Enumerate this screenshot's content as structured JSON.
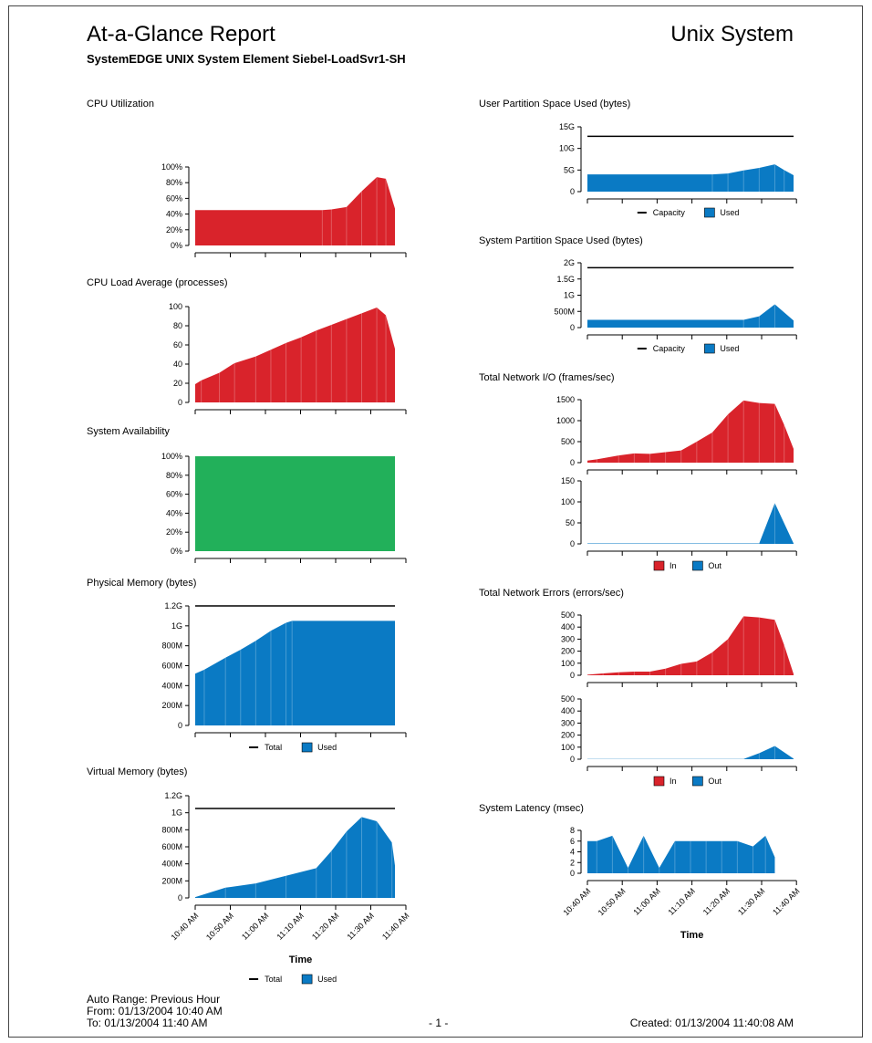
{
  "header": {
    "title": "At-a-Glance Report",
    "subtitle": "SystemEDGE UNIX System Element Siebel-LoadSvr1-SH",
    "system_type": "Unix System"
  },
  "footer": {
    "range": "Auto Range:  Previous Hour",
    "from": "From:  01/13/2004 10:40 AM",
    "to": "To:  01/13/2004 11:40 AM",
    "page": "- 1 -",
    "created": "Created:  01/13/2004 11:40:08 AM"
  },
  "time_axis": {
    "label": "Time",
    "ticks": [
      "10:40 AM",
      "10:50 AM",
      "11:00 AM",
      "11:10 AM",
      "11:20 AM",
      "11:30 AM",
      "11:40 AM"
    ]
  },
  "colors": {
    "red": "#d9232b",
    "green": "#22b05a",
    "blue": "#0a7ac4",
    "line": "#000000"
  },
  "chart_data": [
    {
      "id": "cpu-util",
      "type": "area",
      "title": "CPU Utilization",
      "ylim": [
        0,
        100
      ],
      "y_ticks": [
        0,
        20,
        40,
        60,
        80,
        100
      ],
      "y_tick_labels": [
        "0%",
        "20%",
        "40%",
        "60%",
        "80%",
        "100%"
      ],
      "series": [
        {
          "color": "red",
          "x": [
            0,
            42,
            45,
            50,
            55,
            60,
            63,
            66
          ],
          "values": [
            45,
            45,
            46,
            49,
            69,
            87,
            85,
            47
          ]
        }
      ]
    },
    {
      "id": "cpu-load",
      "type": "area",
      "title": "CPU Load Average (processes)",
      "ylim": [
        0,
        100
      ],
      "y_ticks": [
        0,
        20,
        40,
        60,
        80,
        100
      ],
      "y_tick_labels": [
        "0",
        "20",
        "40",
        "60",
        "80",
        "100"
      ],
      "series": [
        {
          "color": "red",
          "x": [
            0,
            2,
            8,
            13,
            20,
            25,
            30,
            35,
            40,
            45,
            50,
            55,
            60,
            63,
            66
          ],
          "values": [
            19,
            23,
            31,
            41,
            48,
            55,
            62,
            68,
            75,
            81,
            87,
            93,
            99,
            91,
            56
          ]
        }
      ]
    },
    {
      "id": "availability",
      "type": "area",
      "title": "System Availability",
      "ylim": [
        0,
        100
      ],
      "y_ticks": [
        0,
        20,
        40,
        60,
        80,
        100
      ],
      "y_tick_labels": [
        "0%",
        "20%",
        "40%",
        "60%",
        "80%",
        "100%"
      ],
      "series": [
        {
          "color": "green",
          "x": [
            0,
            66
          ],
          "values": [
            100,
            100
          ]
        }
      ]
    },
    {
      "id": "phys-mem",
      "type": "area",
      "title": "Physical Memory (bytes)",
      "ylim": [
        0,
        1.2
      ],
      "y_ticks": [
        0,
        0.2,
        0.4,
        0.6,
        0.8,
        1.0,
        1.2
      ],
      "y_tick_labels": [
        "0",
        "200M",
        "400M",
        "600M",
        "800M",
        "1G",
        "1.2G"
      ],
      "series": [
        {
          "color": "blue",
          "x": [
            0,
            3,
            10,
            15,
            20,
            25,
            30,
            32,
            66
          ],
          "values": [
            0.52,
            0.56,
            0.68,
            0.76,
            0.85,
            0.95,
            1.03,
            1.05,
            1.05
          ]
        }
      ],
      "lines": [
        {
          "color": "line",
          "x": [
            0,
            66
          ],
          "values": [
            1.2,
            1.2
          ]
        }
      ],
      "legend": [
        {
          "kind": "line",
          "label": "Total"
        },
        {
          "kind": "box",
          "color": "blue",
          "label": "Used"
        }
      ]
    },
    {
      "id": "virt-mem",
      "type": "area",
      "title": "Virtual Memory (bytes)",
      "ylim": [
        0,
        1.2
      ],
      "y_ticks": [
        0,
        0.2,
        0.4,
        0.6,
        0.8,
        1.0,
        1.2
      ],
      "y_tick_labels": [
        "0",
        "200M",
        "400M",
        "600M",
        "800M",
        "1G",
        "1.2G"
      ],
      "series": [
        {
          "color": "blue",
          "x": [
            0,
            10,
            20,
            30,
            40,
            45,
            50,
            55,
            60,
            65,
            66
          ],
          "values": [
            0.01,
            0.12,
            0.17,
            0.26,
            0.35,
            0.55,
            0.78,
            0.95,
            0.9,
            0.65,
            0.38
          ]
        }
      ],
      "lines": [
        {
          "color": "line",
          "x": [
            0,
            66
          ],
          "values": [
            1.05,
            1.05
          ]
        }
      ],
      "legend": [
        {
          "kind": "line",
          "label": "Total"
        },
        {
          "kind": "box",
          "color": "blue",
          "label": "Used"
        }
      ],
      "time_axis": true
    },
    {
      "id": "user-part",
      "type": "area",
      "title": "User Partition Space Used (bytes)",
      "ylim": [
        0,
        15
      ],
      "y_ticks": [
        0,
        5,
        10,
        15
      ],
      "y_tick_labels": [
        "0",
        "5G",
        "10G",
        "15G"
      ],
      "series": [
        {
          "color": "blue",
          "x": [
            0,
            40,
            45,
            50,
            55,
            60,
            63,
            66
          ],
          "values": [
            4,
            4,
            4.2,
            4.9,
            5.5,
            6.3,
            5,
            3.8
          ]
        }
      ],
      "lines": [
        {
          "color": "line",
          "x": [
            0,
            66
          ],
          "values": [
            12.8,
            12.8
          ]
        }
      ],
      "legend": [
        {
          "kind": "line",
          "label": "Capacity"
        },
        {
          "kind": "box",
          "color": "blue",
          "label": "Used"
        }
      ]
    },
    {
      "id": "sys-part",
      "type": "area",
      "title": "System Partition Space Used (bytes)",
      "ylim": [
        0,
        2
      ],
      "y_ticks": [
        0,
        0.5,
        1.0,
        1.5,
        2.0
      ],
      "y_tick_labels": [
        "0",
        "500M",
        "1G",
        "1.5G",
        "2G"
      ],
      "series": [
        {
          "color": "blue",
          "x": [
            0,
            50,
            55,
            60,
            66
          ],
          "values": [
            0.24,
            0.24,
            0.35,
            0.72,
            0.22
          ]
        }
      ],
      "lines": [
        {
          "color": "line",
          "x": [
            0,
            66
          ],
          "values": [
            1.85,
            1.85
          ]
        }
      ],
      "legend": [
        {
          "kind": "line",
          "label": "Capacity"
        },
        {
          "kind": "box",
          "color": "blue",
          "label": "Used"
        }
      ]
    },
    {
      "id": "net-io-in",
      "type": "area",
      "title": "Total Network I/O (frames/sec)",
      "ylim": [
        0,
        1500
      ],
      "y_ticks": [
        0,
        500,
        1000,
        1500
      ],
      "y_tick_labels": [
        "0",
        "500",
        "1000",
        "1500"
      ],
      "series": [
        {
          "color": "red",
          "x": [
            0,
            3,
            10,
            15,
            20,
            25,
            30,
            35,
            40,
            45,
            50,
            55,
            60,
            63,
            66
          ],
          "values": [
            50,
            80,
            170,
            220,
            210,
            250,
            290,
            500,
            720,
            1150,
            1480,
            1420,
            1400,
            900,
            330
          ]
        }
      ]
    },
    {
      "id": "net-io-out",
      "type": "area",
      "title": "",
      "ylim": [
        0,
        150
      ],
      "y_ticks": [
        0,
        50,
        100,
        150
      ],
      "y_tick_labels": [
        "0",
        "50",
        "100",
        "150"
      ],
      "series": [
        {
          "color": "blue",
          "x": [
            0,
            55,
            60,
            66
          ],
          "values": [
            1,
            1,
            97,
            1
          ]
        }
      ],
      "legend": [
        {
          "kind": "box",
          "color": "red",
          "label": "In"
        },
        {
          "kind": "box",
          "color": "blue",
          "label": "Out"
        }
      ]
    },
    {
      "id": "net-err-in",
      "type": "area",
      "title": "Total Network Errors (errors/sec)",
      "ylim": [
        0,
        500
      ],
      "y_ticks": [
        0,
        100,
        200,
        300,
        400,
        500
      ],
      "y_tick_labels": [
        "0",
        "100",
        "200",
        "300",
        "400",
        "500"
      ],
      "series": [
        {
          "color": "red",
          "x": [
            0,
            5,
            10,
            15,
            20,
            25,
            30,
            35,
            40,
            45,
            50,
            55,
            60,
            63,
            66
          ],
          "values": [
            5,
            15,
            25,
            30,
            30,
            55,
            95,
            115,
            190,
            300,
            490,
            480,
            460,
            250,
            10
          ]
        }
      ]
    },
    {
      "id": "net-err-out",
      "type": "area",
      "title": "",
      "ylim": [
        0,
        500
      ],
      "y_ticks": [
        0,
        100,
        200,
        300,
        400,
        500
      ],
      "y_tick_labels": [
        "0",
        "100",
        "200",
        "300",
        "400",
        "500"
      ],
      "series": [
        {
          "color": "blue",
          "x": [
            0,
            50,
            55,
            60,
            66
          ],
          "values": [
            2,
            2,
            50,
            110,
            5
          ]
        }
      ],
      "legend": [
        {
          "kind": "box",
          "color": "red",
          "label": "In"
        },
        {
          "kind": "box",
          "color": "blue",
          "label": "Out"
        }
      ]
    },
    {
      "id": "latency",
      "type": "area",
      "title": "System Latency (msec)",
      "ylim": [
        0,
        8
      ],
      "y_ticks": [
        0,
        2,
        4,
        6,
        8
      ],
      "y_tick_labels": [
        "0",
        "2",
        "4",
        "6",
        "8"
      ],
      "series": [
        {
          "color": "blue",
          "x": [
            0,
            3,
            8,
            13,
            18,
            23,
            28,
            33,
            38,
            43,
            48,
            53,
            57,
            60
          ],
          "values": [
            6,
            6,
            7,
            1,
            7,
            1,
            6,
            6,
            6,
            6,
            6,
            5,
            7,
            3
          ]
        }
      ],
      "time_axis": true
    }
  ]
}
